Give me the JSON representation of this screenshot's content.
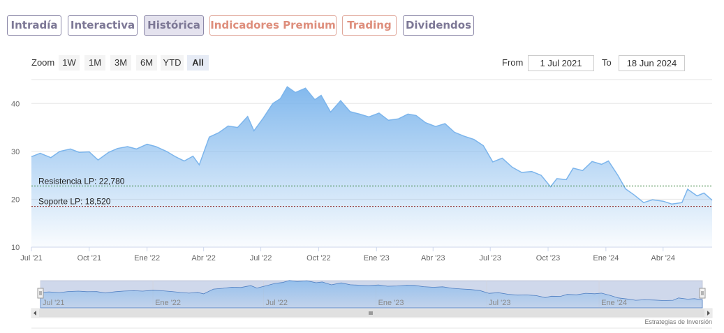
{
  "tabs": [
    {
      "label": "Intradía",
      "style": "normal"
    },
    {
      "label": "Interactiva",
      "style": "normal"
    },
    {
      "label": "Histórica",
      "style": "active"
    },
    {
      "label": "Indicadores Premium",
      "style": "orange"
    },
    {
      "label": "Trading",
      "style": "orange"
    },
    {
      "label": "Dividendos",
      "style": "normal"
    }
  ],
  "zoom": {
    "label": "Zoom",
    "buttons": [
      "1W",
      "1M",
      "3M",
      "6M",
      "YTD",
      "All"
    ],
    "active": "All"
  },
  "range": {
    "from_label": "From",
    "from_value": "1 Jul 2021",
    "to_label": "To",
    "to_value": "18 Jun 2024"
  },
  "credit": "Estrategias de Inversión",
  "colors": {
    "line": "#7cb5ec",
    "fill_top": "#7cb5ec",
    "resistance": "#2e7d32",
    "support": "#8b1a1a",
    "tab_border": "#8c88a8",
    "tab_orange": "#de8e7c"
  },
  "chart_data": {
    "type": "area",
    "ylim": [
      10,
      45
    ],
    "yticks": [
      10,
      20,
      30,
      40
    ],
    "xlim": [
      "2021-07-01",
      "2024-06-18"
    ],
    "xticks": [
      {
        "date": "2021-07-01",
        "label": "Jul '21"
      },
      {
        "date": "2021-10-01",
        "label": "Oct '21"
      },
      {
        "date": "2022-01-01",
        "label": "Ene '22"
      },
      {
        "date": "2022-04-01",
        "label": "Abr '22"
      },
      {
        "date": "2022-07-01",
        "label": "Jul '22"
      },
      {
        "date": "2022-10-01",
        "label": "Oct '22"
      },
      {
        "date": "2023-01-01",
        "label": "Ene '23"
      },
      {
        "date": "2023-04-01",
        "label": "Abr '23"
      },
      {
        "date": "2023-07-01",
        "label": "Jul '23"
      },
      {
        "date": "2023-10-01",
        "label": "Oct '23"
      },
      {
        "date": "2024-01-01",
        "label": "Ene '24"
      },
      {
        "date": "2024-04-01",
        "label": "Abr '24"
      }
    ],
    "navigator_xticks": [
      {
        "date": "2021-07-01",
        "label": "Jul '21"
      },
      {
        "date": "2022-01-01",
        "label": "Ene '22"
      },
      {
        "date": "2022-07-01",
        "label": "Jul '22"
      },
      {
        "date": "2023-01-01",
        "label": "Ene '23"
      },
      {
        "date": "2023-07-01",
        "label": "Jul '23"
      },
      {
        "date": "2024-01-01",
        "label": "Ene '24"
      }
    ],
    "reference_lines": [
      {
        "label": "Resistencia LP: 22,780",
        "value": 22.78,
        "color": "#2e7d32"
      },
      {
        "label": "Soporte LP: 18,520",
        "value": 18.52,
        "color": "#8b1a1a"
      }
    ],
    "series": [
      {
        "points": [
          [
            "2021-07-01",
            28.9
          ],
          [
            "2021-07-15",
            29.6
          ],
          [
            "2021-08-01",
            28.7
          ],
          [
            "2021-08-15",
            30.0
          ],
          [
            "2021-09-01",
            30.5
          ],
          [
            "2021-09-15",
            29.8
          ],
          [
            "2021-10-01",
            29.9
          ],
          [
            "2021-10-15",
            28.2
          ],
          [
            "2021-11-01",
            29.8
          ],
          [
            "2021-11-15",
            30.6
          ],
          [
            "2021-12-01",
            31.0
          ],
          [
            "2021-12-15",
            30.5
          ],
          [
            "2022-01-01",
            31.5
          ],
          [
            "2022-01-15",
            31.0
          ],
          [
            "2022-02-01",
            30.0
          ],
          [
            "2022-02-15",
            28.9
          ],
          [
            "2022-03-01",
            28.0
          ],
          [
            "2022-03-15",
            29.0
          ],
          [
            "2022-03-25",
            27.2
          ],
          [
            "2022-04-10",
            33.0
          ],
          [
            "2022-04-25",
            33.9
          ],
          [
            "2022-05-10",
            35.3
          ],
          [
            "2022-05-25",
            35.0
          ],
          [
            "2022-06-10",
            37.3
          ],
          [
            "2022-06-20",
            34.3
          ],
          [
            "2022-07-05",
            37.0
          ],
          [
            "2022-07-20",
            40.0
          ],
          [
            "2022-08-01",
            41.0
          ],
          [
            "2022-08-12",
            43.5
          ],
          [
            "2022-08-25",
            42.3
          ],
          [
            "2022-09-10",
            43.2
          ],
          [
            "2022-09-25",
            40.8
          ],
          [
            "2022-10-05",
            41.7
          ],
          [
            "2022-10-20",
            38.2
          ],
          [
            "2022-11-05",
            40.6
          ],
          [
            "2022-11-20",
            38.3
          ],
          [
            "2022-12-05",
            37.8
          ],
          [
            "2022-12-20",
            37.2
          ],
          [
            "2023-01-05",
            38.0
          ],
          [
            "2023-01-20",
            36.5
          ],
          [
            "2023-02-05",
            36.8
          ],
          [
            "2023-02-20",
            37.8
          ],
          [
            "2023-03-05",
            37.5
          ],
          [
            "2023-03-20",
            36.0
          ],
          [
            "2023-04-05",
            35.2
          ],
          [
            "2023-04-20",
            35.8
          ],
          [
            "2023-05-05",
            34.0
          ],
          [
            "2023-05-20",
            33.2
          ],
          [
            "2023-06-05",
            32.5
          ],
          [
            "2023-06-20",
            31.2
          ],
          [
            "2023-07-05",
            27.8
          ],
          [
            "2023-07-20",
            28.6
          ],
          [
            "2023-08-05",
            26.7
          ],
          [
            "2023-08-20",
            25.6
          ],
          [
            "2023-09-05",
            25.8
          ],
          [
            "2023-09-20",
            25.0
          ],
          [
            "2023-10-05",
            22.6
          ],
          [
            "2023-10-15",
            24.3
          ],
          [
            "2023-10-30",
            24.1
          ],
          [
            "2023-11-10",
            26.5
          ],
          [
            "2023-11-25",
            26.0
          ],
          [
            "2023-12-10",
            27.9
          ],
          [
            "2023-12-25",
            27.3
          ],
          [
            "2024-01-05",
            28.0
          ],
          [
            "2024-01-20",
            25.0
          ],
          [
            "2024-02-01",
            22.2
          ],
          [
            "2024-02-15",
            20.9
          ],
          [
            "2024-03-01",
            19.3
          ],
          [
            "2024-03-15",
            19.9
          ],
          [
            "2024-04-01",
            19.6
          ],
          [
            "2024-04-15",
            19.0
          ],
          [
            "2024-05-01",
            19.3
          ],
          [
            "2024-05-10",
            22.1
          ],
          [
            "2024-05-25",
            20.7
          ],
          [
            "2024-06-05",
            21.3
          ],
          [
            "2024-06-18",
            19.8
          ]
        ]
      }
    ]
  }
}
